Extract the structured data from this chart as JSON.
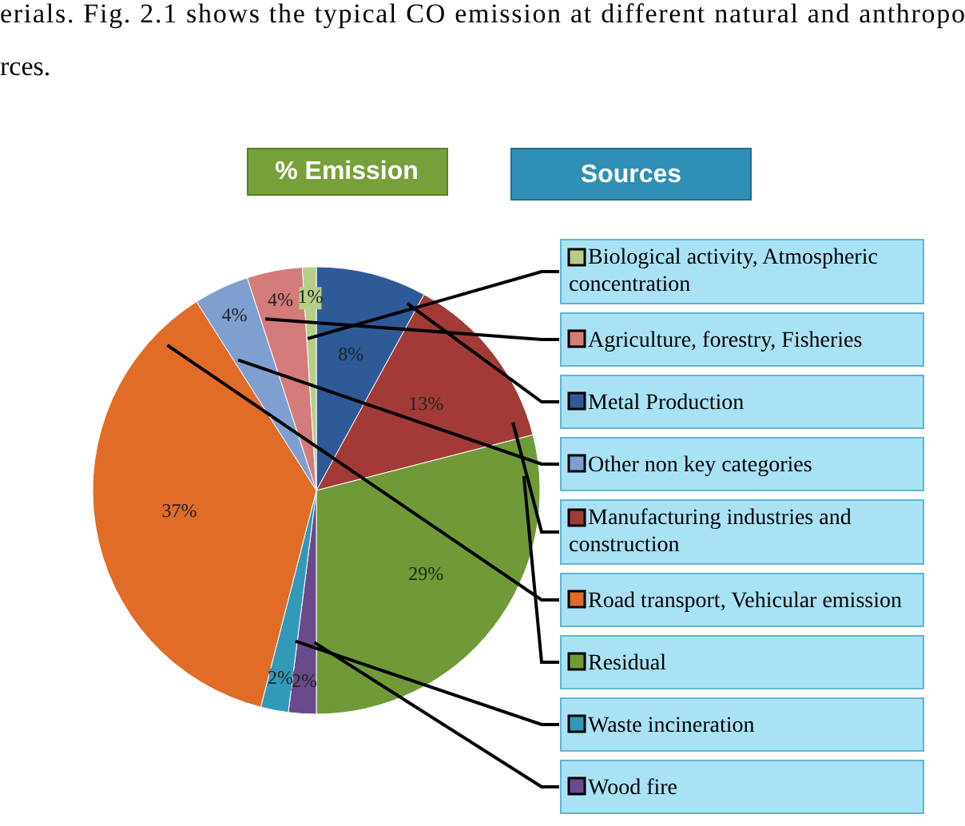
{
  "chart_data": {
    "type": "pie",
    "title": "% Emission",
    "legend_title": "Sources",
    "categories": [
      "Metal Production",
      "Manufacturing industries and construction",
      "Residual",
      "Wood fire",
      "Waste incineration",
      "Road transport, Vehicular emission",
      "Other non key categories",
      "Agriculture, forestry, Fisheries",
      "Biological activity, Atmospheric concentration"
    ],
    "values": [
      8,
      13,
      29,
      2,
      2,
      37,
      4,
      4,
      1
    ],
    "value_labels": [
      "8%",
      "13%",
      "29%",
      "2%",
      "2%",
      "37%",
      "4%",
      "4%",
      "1%"
    ],
    "colors": [
      "#2e5a98",
      "#a23a38",
      "#6f9a37",
      "#6a4a8c",
      "#3399b8",
      "#e06c27",
      "#7f9fd0",
      "#d47b7b",
      "#b5cf8a"
    ],
    "legend": "right",
    "annotations": [
      "erials.  Fig.  2.1  shows  the  typical  CO  emission  at  different  natural  and  anthropo",
      "rces."
    ]
  }
}
